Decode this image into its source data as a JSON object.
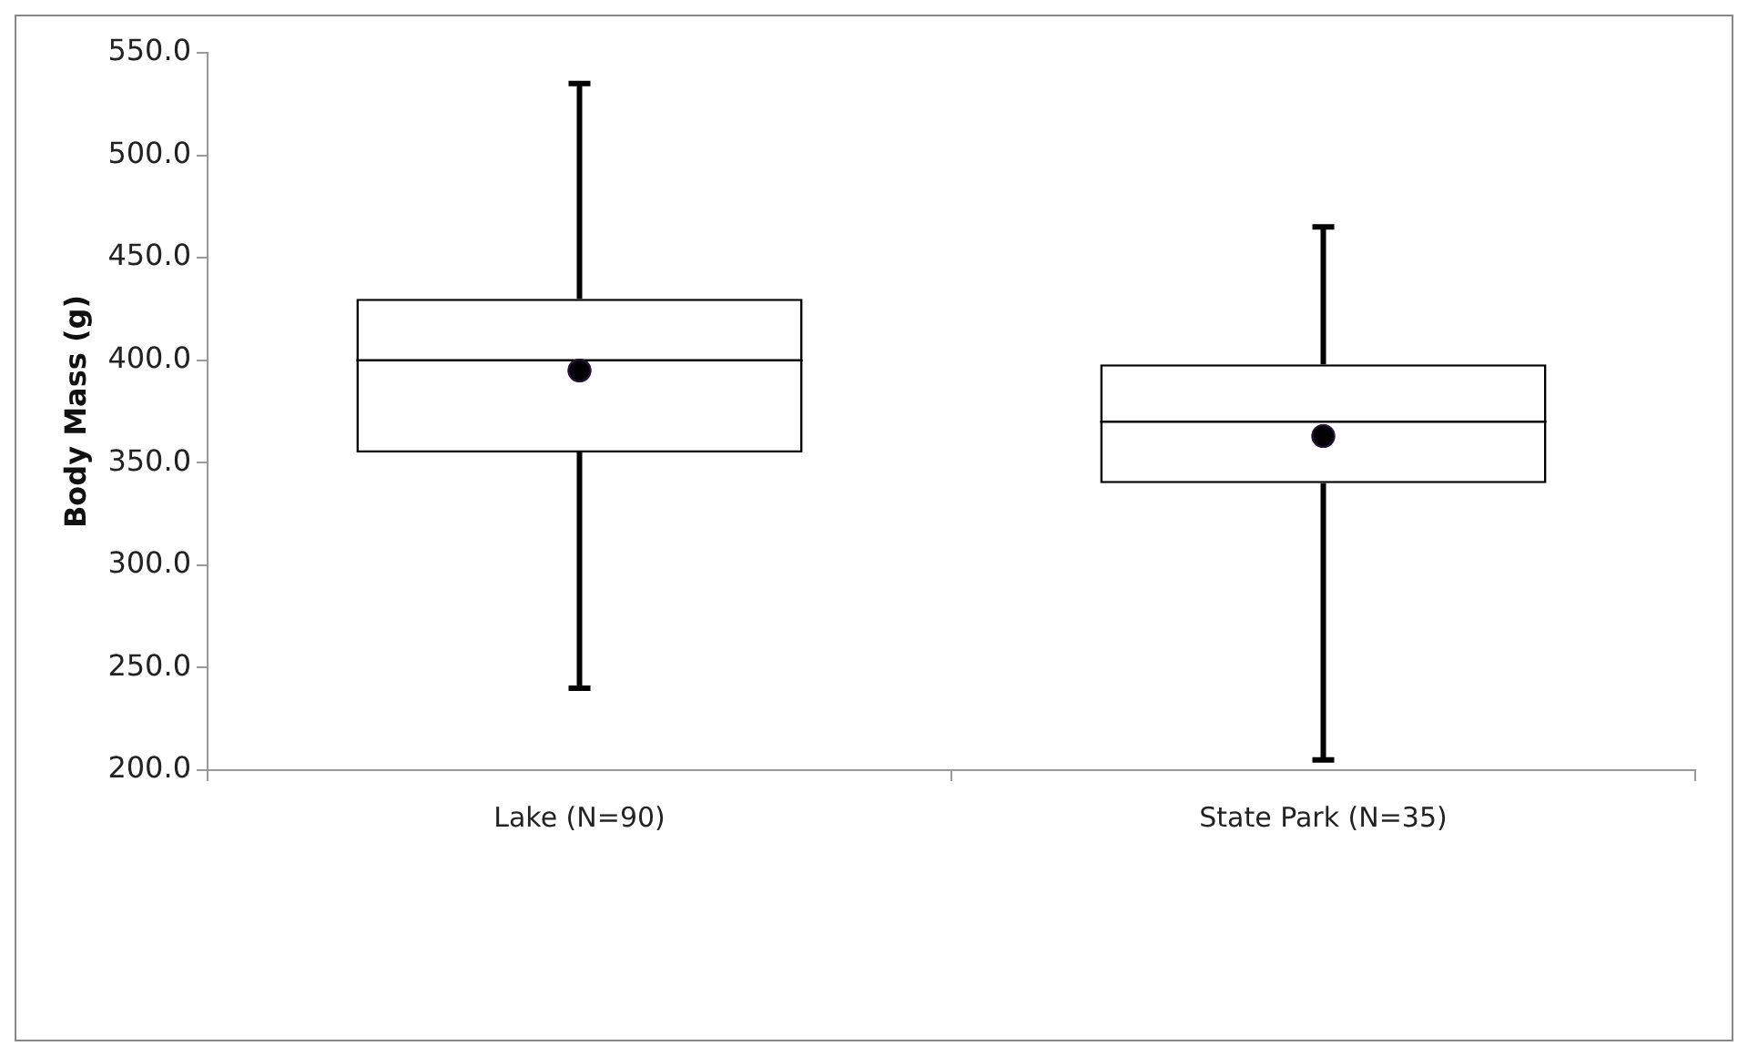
{
  "chart_data": {
    "type": "box",
    "ylabel": "Body Mass (g)",
    "categories": [
      "Lake (N=90)",
      "State Park (N=35)"
    ],
    "boxes": [
      {
        "low": 240,
        "q1": 355,
        "median": 400,
        "q3": 430,
        "high": 535,
        "mean": 395
      },
      {
        "low": 205,
        "q1": 340,
        "median": 370,
        "q3": 398,
        "high": 465,
        "mean": 363
      }
    ],
    "ylim": [
      200,
      550
    ],
    "yticks": [
      {
        "value": 200,
        "label": "200.0"
      },
      {
        "value": 250,
        "label": "250.0"
      },
      {
        "value": 300,
        "label": "300.0"
      },
      {
        "value": 350,
        "label": "350.0"
      },
      {
        "value": 400,
        "label": "400.0"
      },
      {
        "value": 450,
        "label": "450.0"
      },
      {
        "value": 500,
        "label": "500.0"
      },
      {
        "value": 550,
        "label": "550.0"
      }
    ],
    "grid": false,
    "legend": false
  }
}
